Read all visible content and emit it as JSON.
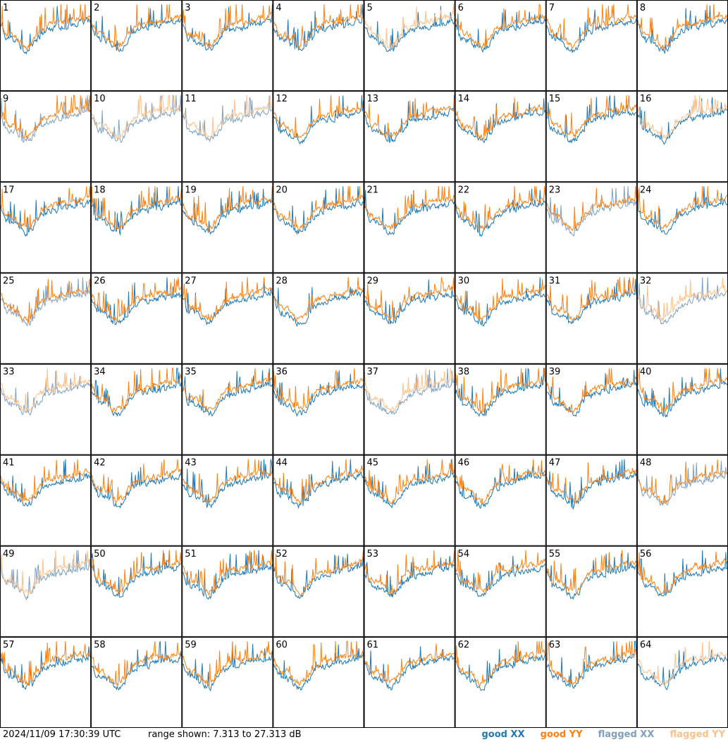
{
  "chart_data": {
    "type": "line",
    "grid_rows": 8,
    "grid_cols": 8,
    "panels": [
      "1",
      "2",
      "3",
      "4",
      "5",
      "6",
      "7",
      "8",
      "9",
      "10",
      "11",
      "12",
      "13",
      "14",
      "15",
      "16",
      "17",
      "18",
      "19",
      "20",
      "21",
      "22",
      "23",
      "24",
      "25",
      "26",
      "27",
      "28",
      "29",
      "30",
      "31",
      "32",
      "33",
      "34",
      "35",
      "36",
      "37",
      "38",
      "39",
      "40",
      "41",
      "42",
      "43",
      "44",
      "45",
      "46",
      "47",
      "48",
      "49",
      "50",
      "51",
      "52",
      "53",
      "54",
      "55",
      "56",
      "57",
      "58",
      "59",
      "60",
      "61",
      "62",
      "63",
      "64"
    ],
    "series": [
      {
        "name": "good XX",
        "color": "#1f77b4"
      },
      {
        "name": "good YY",
        "color": "#ff7f0e"
      },
      {
        "name": "flagged XX",
        "color": "#7f9fbf"
      },
      {
        "name": "flagged YY",
        "color": "#ffbf87"
      }
    ],
    "panel_status": {
      "1": {
        "xx": "good",
        "yy": "good"
      },
      "5": {
        "xx": "good",
        "yy": "flagged"
      },
      "9": {
        "xx": "flagged",
        "yy": "good"
      },
      "10": {
        "xx": "flagged",
        "yy": "flagged"
      },
      "11": {
        "xx": "flagged",
        "yy": "flagged"
      },
      "16": {
        "xx": "good",
        "yy": "flagged"
      },
      "23": {
        "xx": "flagged",
        "yy": "good"
      },
      "25": {
        "xx": "flagged",
        "yy": "good"
      },
      "32": {
        "xx": "flagged",
        "yy": "flagged"
      },
      "33": {
        "xx": "flagged",
        "yy": "flagged"
      },
      "37": {
        "xx": "flagged",
        "yy": "flagged"
      },
      "48": {
        "xx": "flagged",
        "yy": "good"
      },
      "49": {
        "xx": "flagged",
        "yy": "flagged"
      },
      "64": {
        "xx": "good",
        "yy": "flagged"
      }
    },
    "ylim": [
      7.313,
      27.313
    ],
    "yunit": "dB"
  },
  "footer": {
    "timestamp": "2024/11/09 17:30:39 UTC",
    "range_text": "range shown: 7.313 to 27.313 dB",
    "legend": {
      "good_xx": "good XX",
      "good_yy": "good YY",
      "flagged_xx": "flagged XX",
      "flagged_yy": "flagged YY"
    }
  }
}
